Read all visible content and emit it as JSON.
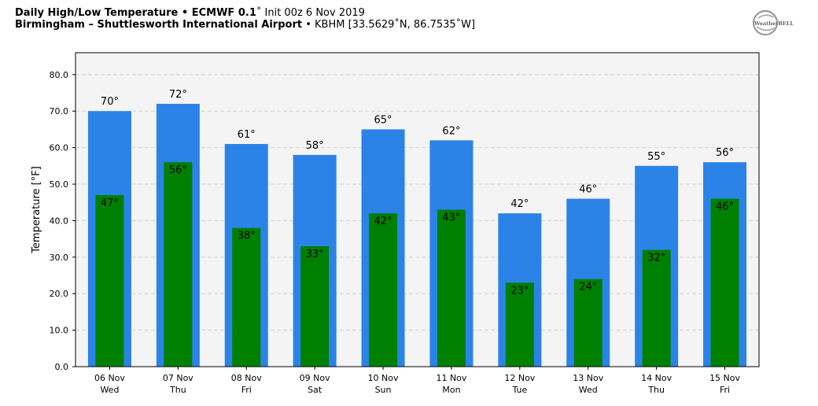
{
  "header": {
    "title_bold": "Daily High/Low Temperature • ECMWF 0.1",
    "title_rest": "˚ Init 00z 6 Nov 2019",
    "location_bold": "Birmingham – Shuttlesworth International Airport",
    "location_rest": " • KBHM [33.5629˚N, 86.7535˚W]"
  },
  "logo": {
    "text": "WeatherBELL"
  },
  "chart_data": {
    "type": "bar",
    "ylabel": "Temperature [°F]",
    "ylim": [
      0,
      86
    ],
    "yticks": [
      "0.0",
      "10.0",
      "20.0",
      "30.0",
      "40.0",
      "50.0",
      "60.0",
      "70.0",
      "80.0"
    ],
    "grid": true,
    "categories": [
      "06 Nov",
      "07 Nov",
      "08 Nov",
      "09 Nov",
      "10 Nov",
      "11 Nov",
      "12 Nov",
      "13 Nov",
      "14 Nov",
      "15 Nov"
    ],
    "days": [
      "Wed",
      "Thu",
      "Fri",
      "Sat",
      "Sun",
      "Mon",
      "Tue",
      "Wed",
      "Thu",
      "Fri"
    ],
    "series": [
      {
        "values": [
          70,
          72,
          61,
          58,
          65,
          62,
          42,
          46,
          55,
          56
        ],
        "color": "#2b83e8",
        "labels": [
          "70°",
          "72°",
          "61°",
          "58°",
          "65°",
          "62°",
          "42°",
          "46°",
          "55°",
          "56°"
        ]
      },
      {
        "values": [
          47,
          56,
          38,
          33,
          42,
          43,
          23,
          24,
          32,
          46
        ],
        "color": "#008000",
        "labels": [
          "47°",
          "56°",
          "38°",
          "33°",
          "42°",
          "43°",
          "23°",
          "24°",
          "32°",
          "46°"
        ]
      }
    ]
  }
}
